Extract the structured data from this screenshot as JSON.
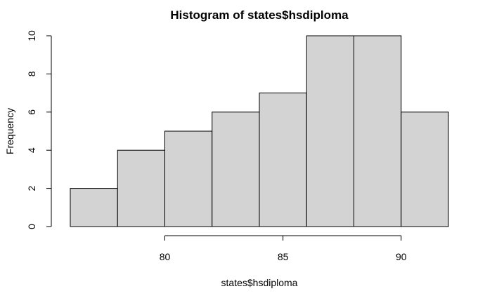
{
  "chart_data": {
    "type": "bar",
    "title": "Histogram of states$hsdiploma",
    "xlabel": "states$hsdiploma",
    "ylabel": "Frequency",
    "bins": [
      {
        "start": 76,
        "end": 78,
        "count": 2
      },
      {
        "start": 78,
        "end": 80,
        "count": 4
      },
      {
        "start": 80,
        "end": 82,
        "count": 5
      },
      {
        "start": 82,
        "end": 84,
        "count": 6
      },
      {
        "start": 84,
        "end": 86,
        "count": 7
      },
      {
        "start": 86,
        "end": 88,
        "count": 10
      },
      {
        "start": 88,
        "end": 90,
        "count": 10
      },
      {
        "start": 90,
        "end": 92,
        "count": 6
      }
    ],
    "x_ticks": [
      80,
      85,
      90
    ],
    "y_ticks": [
      0,
      2,
      4,
      6,
      8,
      10
    ],
    "xlim": [
      76,
      92
    ],
    "ylim": [
      0,
      10
    ],
    "bar_fill": "#d3d3d3",
    "bar_stroke": "#000000",
    "grid": false
  }
}
